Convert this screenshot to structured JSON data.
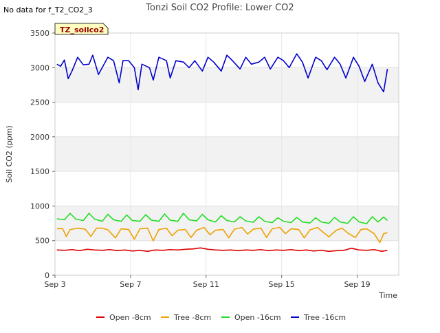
{
  "no_data_note": "No data for f_T2_CO2_3",
  "site_badge": "TZ_soilco2",
  "chart_data": {
    "type": "line",
    "title": "Tonzi Soil CO2 Profile: Lower CO2",
    "xlabel": "Time",
    "ylabel": "Soil CO2 (ppm)",
    "xlim": [
      3,
      21.2
    ],
    "ylim": [
      0,
      3500
    ],
    "yticks": [
      0,
      500,
      1000,
      1500,
      2000,
      2500,
      3000,
      3500
    ],
    "xticks": [
      {
        "value": 3,
        "label": "Sep 3"
      },
      {
        "value": 7,
        "label": "Sep 7"
      },
      {
        "value": 11,
        "label": "Sep 11"
      },
      {
        "value": 15,
        "label": "Sep 15"
      },
      {
        "value": 19,
        "label": "Sep 19"
      }
    ],
    "grid": true,
    "legend_position": "bottom",
    "series": [
      {
        "name": "Open -8cm",
        "color": "#dd0000",
        "x": [
          3.1,
          3.5,
          3.9,
          4.3,
          4.7,
          5.1,
          5.5,
          5.9,
          6.3,
          6.7,
          7.1,
          7.5,
          7.9,
          8.3,
          8.7,
          9.1,
          9.5,
          9.9,
          10.3,
          10.7,
          11.1,
          11.5,
          11.9,
          12.3,
          12.7,
          13.1,
          13.5,
          13.9,
          14.3,
          14.7,
          15.1,
          15.5,
          15.9,
          16.3,
          16.7,
          17.1,
          17.5,
          17.9,
          18.3,
          18.7,
          19.1,
          19.5,
          19.9,
          20.3,
          20.6
        ],
        "y": [
          365,
          360,
          370,
          355,
          375,
          365,
          360,
          370,
          355,
          365,
          350,
          360,
          345,
          365,
          360,
          370,
          365,
          375,
          380,
          395,
          375,
          365,
          360,
          365,
          355,
          365,
          360,
          370,
          355,
          365,
          360,
          370,
          355,
          365,
          350,
          360,
          345,
          355,
          360,
          390,
          365,
          360,
          370,
          345,
          360
        ]
      },
      {
        "name": "Tree -8cm",
        "color": "#f0a000",
        "x": [
          3.1,
          3.4,
          3.6,
          3.8,
          4.2,
          4.6,
          4.9,
          5.2,
          5.5,
          5.8,
          6.2,
          6.5,
          6.9,
          7.2,
          7.5,
          7.9,
          8.2,
          8.5,
          8.9,
          9.2,
          9.5,
          9.9,
          10.2,
          10.5,
          10.9,
          11.2,
          11.5,
          11.9,
          12.2,
          12.5,
          12.9,
          13.2,
          13.5,
          13.9,
          14.2,
          14.5,
          14.9,
          15.2,
          15.5,
          15.9,
          16.2,
          16.5,
          16.9,
          17.2,
          17.5,
          17.9,
          18.2,
          18.5,
          18.9,
          19.2,
          19.5,
          19.9,
          20.2,
          20.4,
          20.6
        ],
        "y": [
          670,
          675,
          560,
          660,
          680,
          665,
          560,
          680,
          680,
          655,
          540,
          670,
          660,
          520,
          670,
          680,
          495,
          660,
          680,
          570,
          650,
          660,
          545,
          650,
          690,
          585,
          650,
          660,
          540,
          665,
          690,
          595,
          665,
          680,
          545,
          670,
          690,
          600,
          670,
          660,
          540,
          655,
          690,
          620,
          555,
          650,
          680,
          610,
          545,
          660,
          670,
          600,
          470,
          600,
          615
        ]
      },
      {
        "name": "Open -16cm",
        "color": "#22dd22",
        "x": [
          3.1,
          3.5,
          3.8,
          4.1,
          4.5,
          4.8,
          5.1,
          5.5,
          5.8,
          6.1,
          6.5,
          6.8,
          7.1,
          7.5,
          7.8,
          8.1,
          8.5,
          8.8,
          9.1,
          9.5,
          9.8,
          10.1,
          10.5,
          10.8,
          11.1,
          11.5,
          11.8,
          12.1,
          12.5,
          12.8,
          13.1,
          13.5,
          13.8,
          14.1,
          14.5,
          14.8,
          15.1,
          15.5,
          15.8,
          16.1,
          16.5,
          16.8,
          17.1,
          17.5,
          17.8,
          18.1,
          18.5,
          18.8,
          19.1,
          19.5,
          19.8,
          20.1,
          20.4,
          20.6
        ],
        "y": [
          815,
          800,
          895,
          810,
          790,
          895,
          810,
          780,
          880,
          800,
          780,
          870,
          790,
          780,
          875,
          795,
          780,
          885,
          795,
          780,
          895,
          800,
          785,
          880,
          800,
          770,
          860,
          790,
          770,
          845,
          785,
          765,
          845,
          780,
          760,
          830,
          780,
          760,
          835,
          770,
          755,
          830,
          770,
          750,
          835,
          770,
          750,
          845,
          770,
          745,
          845,
          770,
          840,
          790
        ]
      },
      {
        "name": "Tree -16cm",
        "color": "#0000cc",
        "x": [
          3.1,
          3.3,
          3.5,
          3.7,
          3.9,
          4.2,
          4.5,
          4.8,
          5.0,
          5.3,
          5.6,
          5.8,
          6.1,
          6.4,
          6.6,
          6.9,
          7.2,
          7.4,
          7.6,
          8.0,
          8.2,
          8.5,
          8.9,
          9.1,
          9.4,
          9.8,
          10.1,
          10.4,
          10.8,
          11.1,
          11.4,
          11.8,
          12.1,
          12.4,
          12.8,
          13.1,
          13.4,
          13.8,
          14.1,
          14.4,
          14.8,
          15.1,
          15.4,
          15.8,
          16.1,
          16.4,
          16.8,
          17.1,
          17.4,
          17.8,
          18.1,
          18.4,
          18.8,
          19.1,
          19.4,
          19.8,
          20.1,
          20.4,
          20.6
        ],
        "y": [
          3050,
          3020,
          3110,
          2840,
          2950,
          3150,
          3040,
          3050,
          3180,
          2900,
          3050,
          3150,
          3100,
          2780,
          3100,
          3100,
          3000,
          2680,
          3050,
          3000,
          2820,
          3150,
          3100,
          2850,
          3100,
          3080,
          3000,
          3100,
          2950,
          3150,
          3080,
          2950,
          3180,
          3100,
          2980,
          3150,
          3050,
          3080,
          3150,
          2980,
          3150,
          3100,
          3000,
          3200,
          3080,
          2850,
          3150,
          3100,
          2970,
          3150,
          3050,
          2850,
          3150,
          3020,
          2800,
          3050,
          2780,
          2650,
          2980
        ]
      }
    ]
  }
}
